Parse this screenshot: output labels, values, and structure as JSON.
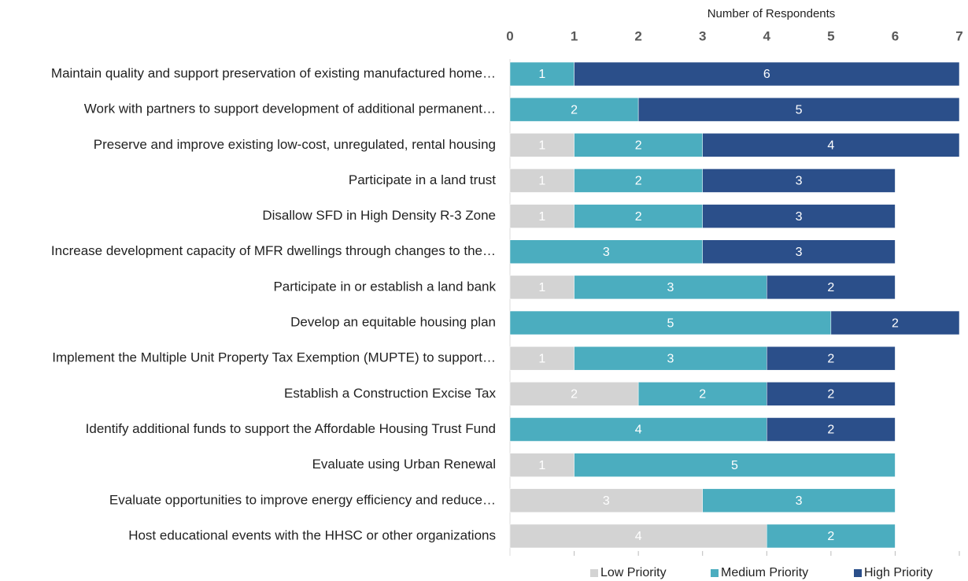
{
  "chart_data": {
    "type": "stacked-barh",
    "xlabel": "Number of Respondents",
    "categories": [
      "Maintain quality and support preservation of existing manufactured home…",
      "Work with partners to support development of additional permanent…",
      "Preserve and improve existing low-cost, unregulated, rental housing",
      "Participate in a land trust",
      "Disallow SFD in High Density R-3 Zone",
      "Increase development capacity of MFR dwellings through changes to the…",
      "Participate in or establish a land bank",
      "Develop an equitable housing plan",
      "Implement the Multiple Unit Property Tax Exemption (MUPTE) to support…",
      "Establish a Construction Excise Tax",
      "Identify additional funds to support the Affordable Housing Trust Fund",
      "Evaluate using Urban Renewal",
      "Evaluate opportunities to improve energy efficiency and reduce…",
      "Host educational events with the HHSC or other organizations"
    ],
    "series": [
      {
        "name": "Low Priority",
        "color": "#d3d3d3",
        "values": [
          null,
          null,
          1,
          1,
          1,
          null,
          1,
          null,
          1,
          2,
          null,
          1,
          3,
          4
        ]
      },
      {
        "name": "Medium Priority",
        "color": "#4badbf",
        "values": [
          1,
          2,
          2,
          2,
          2,
          3,
          3,
          5,
          3,
          2,
          4,
          5,
          3,
          2
        ]
      },
      {
        "name": "High Priority",
        "color": "#2b4f8a",
        "values": [
          6,
          5,
          4,
          3,
          3,
          3,
          2,
          2,
          2,
          2,
          2,
          null,
          null,
          null
        ]
      }
    ],
    "xlim": [
      0,
      7
    ],
    "xticks": [
      0,
      1,
      2,
      3,
      4,
      5,
      6,
      7
    ],
    "grid": false,
    "legend": "bottom"
  }
}
